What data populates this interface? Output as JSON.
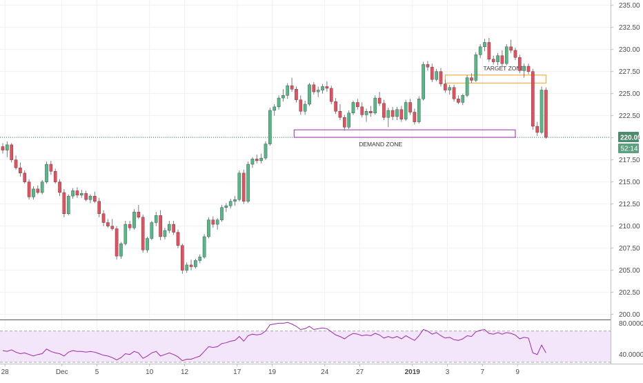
{
  "chart_data": {
    "type": "candlestick",
    "colors": {
      "up": "#53b987",
      "down": "#eb4d5c",
      "wick": "#6b6b6b",
      "grid": "#eef0f3",
      "price_line": "#2e7d5b",
      "price_badge": "#4e8a6d",
      "countdown_badge": "#5e9f7f",
      "target_zone": "#f0a020",
      "demand_zone": "#9c27b0",
      "rsi_line": "#9c27b0",
      "rsi_band": "#f3e6fb"
    },
    "price_axis": {
      "min": 199.5,
      "max": 235.6,
      "ticks": [
        "235.00",
        "232.50",
        "230.00",
        "227.50",
        "225.00",
        "222.50",
        "220.00",
        "217.50",
        "215.00",
        "212.50",
        "210.00",
        "207.50",
        "205.00",
        "202.50",
        "200.00"
      ]
    },
    "current_price": "220.05",
    "countdown": "52:14",
    "x_axis": {
      "labels": [
        {
          "text": "28",
          "bar": 0.5
        },
        {
          "text": "Dec",
          "bar": 13.5
        },
        {
          "text": "5",
          "bar": 21.5
        },
        {
          "text": "10",
          "bar": 33.5
        },
        {
          "text": "12",
          "bar": 41.5
        },
        {
          "text": "17",
          "bar": 53.5
        },
        {
          "text": "19",
          "bar": 61.5
        },
        {
          "text": "24",
          "bar": 73.5
        },
        {
          "text": "27",
          "bar": 81.5
        },
        {
          "text": "2019",
          "bar": 93.5
        },
        {
          "text": "3",
          "bar": 101.5
        },
        {
          "text": "7",
          "bar": 109.5
        },
        {
          "text": "9",
          "bar": 117.5
        }
      ]
    },
    "zones": [
      {
        "label": "TARGET ZONE",
        "top": 227.1,
        "bottom": 226.2,
        "from_bar": 101.0,
        "to_bar": 124.0
      },
      {
        "label": "DEMAND ZONE",
        "top": 220.9,
        "bottom": 220.05,
        "from_bar": 66.5,
        "to_bar": 117.0
      }
    ],
    "candles": [
      [
        219.0,
        219.4,
        218.2,
        218.6
      ],
      [
        218.6,
        219.6,
        217.8,
        219.2
      ],
      [
        219.2,
        219.4,
        217.2,
        217.5
      ],
      [
        217.5,
        218.0,
        216.4,
        216.6
      ],
      [
        216.6,
        217.2,
        215.6,
        216.0
      ],
      [
        216.0,
        216.3,
        214.8,
        215.0
      ],
      [
        215.0,
        215.3,
        213.0,
        213.3
      ],
      [
        213.3,
        214.5,
        213.0,
        214.2
      ],
      [
        214.2,
        214.6,
        213.6,
        213.8
      ],
      [
        213.8,
        215.2,
        213.6,
        215.0
      ],
      [
        215.0,
        217.3,
        214.8,
        217.0
      ],
      [
        217.0,
        217.4,
        215.8,
        216.2
      ],
      [
        216.2,
        216.5,
        214.8,
        215.0
      ],
      [
        215.0,
        215.3,
        213.4,
        213.8
      ],
      [
        213.8,
        214.2,
        211.0,
        211.4
      ],
      [
        211.4,
        213.6,
        211.2,
        213.4
      ],
      [
        213.4,
        214.3,
        213.1,
        214.0
      ],
      [
        214.0,
        214.4,
        213.2,
        213.5
      ],
      [
        213.5,
        214.1,
        213.2,
        213.7
      ],
      [
        213.7,
        214.0,
        212.8,
        213.0
      ],
      [
        213.0,
        213.6,
        212.6,
        213.4
      ],
      [
        213.4,
        213.9,
        212.6,
        212.8
      ],
      [
        212.8,
        213.2,
        211.0,
        211.4
      ],
      [
        211.4,
        211.8,
        210.0,
        210.4
      ],
      [
        210.4,
        210.8,
        209.8,
        210.0
      ],
      [
        210.0,
        210.8,
        209.5,
        209.7
      ],
      [
        209.7,
        210.0,
        206.2,
        206.6
      ],
      [
        206.6,
        208.2,
        206.3,
        208.0
      ],
      [
        208.0,
        210.6,
        207.8,
        210.2
      ],
      [
        210.2,
        210.6,
        209.5,
        209.8
      ],
      [
        209.8,
        211.9,
        209.6,
        211.6
      ],
      [
        211.6,
        212.4,
        210.8,
        211.0
      ],
      [
        211.0,
        211.3,
        207.0,
        207.3
      ],
      [
        207.3,
        208.8,
        207.0,
        208.6
      ],
      [
        208.6,
        210.6,
        208.4,
        210.4
      ],
      [
        210.4,
        211.6,
        210.0,
        211.2
      ],
      [
        211.2,
        211.8,
        208.4,
        208.8
      ],
      [
        208.8,
        209.8,
        208.5,
        209.5
      ],
      [
        209.5,
        210.6,
        209.2,
        210.2
      ],
      [
        210.2,
        210.6,
        209.0,
        209.3
      ],
      [
        209.3,
        209.6,
        207.5,
        207.8
      ],
      [
        207.8,
        208.0,
        204.6,
        205.0
      ],
      [
        205.0,
        205.9,
        204.7,
        205.6
      ],
      [
        205.6,
        206.2,
        205.0,
        205.4
      ],
      [
        205.4,
        206.3,
        205.2,
        206.1
      ],
      [
        206.1,
        206.8,
        205.8,
        206.5
      ],
      [
        206.5,
        209.1,
        206.3,
        208.8
      ],
      [
        208.8,
        211.0,
        208.6,
        210.7
      ],
      [
        210.7,
        211.1,
        209.8,
        210.2
      ],
      [
        210.2,
        210.9,
        209.6,
        210.7
      ],
      [
        210.7,
        212.4,
        210.5,
        212.1
      ],
      [
        212.1,
        212.6,
        211.6,
        212.3
      ],
      [
        212.3,
        213.1,
        212.0,
        212.8
      ],
      [
        212.8,
        213.4,
        212.3,
        213.0
      ],
      [
        213.0,
        216.3,
        212.8,
        216.0
      ],
      [
        216.0,
        216.4,
        212.5,
        212.8
      ],
      [
        212.8,
        217.3,
        212.6,
        217.0
      ],
      [
        217.0,
        217.8,
        216.6,
        217.6
      ],
      [
        217.6,
        218.1,
        217.1,
        217.4
      ],
      [
        217.4,
        218.2,
        217.1,
        217.7
      ],
      [
        217.7,
        219.6,
        217.5,
        219.3
      ],
      [
        219.3,
        223.4,
        219.1,
        223.1
      ],
      [
        223.1,
        223.8,
        222.5,
        223.5
      ],
      [
        223.5,
        224.8,
        223.2,
        224.5
      ],
      [
        224.5,
        225.5,
        224.1,
        224.8
      ],
      [
        224.8,
        226.2,
        224.4,
        225.9
      ],
      [
        225.9,
        226.8,
        225.2,
        225.5
      ],
      [
        225.5,
        225.8,
        224.0,
        224.3
      ],
      [
        224.3,
        224.8,
        222.6,
        223.0
      ],
      [
        223.0,
        224.2,
        222.6,
        223.8
      ],
      [
        223.8,
        226.2,
        223.6,
        226.0
      ],
      [
        226.0,
        226.3,
        224.9,
        225.2
      ],
      [
        225.2,
        225.8,
        224.6,
        225.4
      ],
      [
        225.4,
        226.1,
        225.0,
        225.8
      ],
      [
        225.8,
        226.4,
        225.2,
        225.6
      ],
      [
        225.6,
        225.9,
        223.8,
        224.1
      ],
      [
        224.1,
        224.5,
        222.7,
        223.0
      ],
      [
        223.0,
        223.8,
        222.0,
        222.3
      ],
      [
        222.3,
        222.6,
        220.8,
        221.2
      ],
      [
        221.2,
        223.1,
        221.0,
        222.8
      ],
      [
        222.8,
        224.2,
        222.6,
        224.0
      ],
      [
        224.0,
        224.4,
        223.2,
        223.5
      ],
      [
        223.5,
        224.0,
        222.3,
        222.6
      ],
      [
        222.6,
        223.3,
        221.8,
        223.0
      ],
      [
        223.0,
        223.6,
        222.4,
        222.8
      ],
      [
        222.8,
        224.8,
        222.6,
        224.5
      ],
      [
        224.5,
        225.2,
        223.6,
        223.9
      ],
      [
        223.9,
        224.3,
        222.0,
        222.3
      ],
      [
        222.3,
        223.4,
        221.2,
        223.1
      ],
      [
        223.1,
        223.5,
        222.0,
        222.4
      ],
      [
        222.4,
        223.5,
        222.0,
        223.2
      ],
      [
        223.2,
        223.6,
        221.8,
        222.1
      ],
      [
        222.1,
        224.3,
        221.9,
        224.0
      ],
      [
        224.0,
        224.4,
        222.6,
        222.9
      ],
      [
        222.9,
        223.3,
        221.5,
        221.8
      ],
      [
        221.8,
        224.7,
        221.6,
        224.4
      ],
      [
        224.4,
        228.6,
        224.2,
        228.3
      ],
      [
        228.3,
        228.7,
        227.6,
        228.0
      ],
      [
        228.0,
        228.4,
        226.3,
        226.6
      ],
      [
        226.6,
        227.8,
        226.4,
        227.5
      ],
      [
        227.5,
        227.9,
        225.8,
        226.1
      ],
      [
        226.1,
        226.6,
        225.1,
        225.4
      ],
      [
        225.4,
        226.0,
        224.9,
        225.7
      ],
      [
        225.7,
        226.0,
        224.1,
        224.4
      ],
      [
        224.4,
        224.8,
        223.8,
        224.0
      ],
      [
        224.0,
        225.0,
        223.7,
        224.8
      ],
      [
        224.8,
        227.1,
        224.6,
        226.8
      ],
      [
        226.8,
        227.3,
        226.2,
        226.5
      ],
      [
        226.5,
        229.7,
        226.3,
        229.4
      ],
      [
        229.4,
        230.6,
        229.0,
        230.3
      ],
      [
        230.3,
        231.2,
        229.8,
        230.8
      ],
      [
        230.8,
        231.3,
        228.6,
        228.9
      ],
      [
        228.9,
        229.3,
        228.3,
        228.6
      ],
      [
        228.6,
        229.6,
        228.2,
        229.3
      ],
      [
        229.3,
        229.9,
        228.0,
        228.4
      ],
      [
        228.4,
        230.6,
        228.2,
        230.3
      ],
      [
        230.3,
        231.1,
        229.6,
        229.9
      ],
      [
        229.9,
        230.2,
        228.8,
        229.1
      ],
      [
        229.1,
        229.4,
        227.3,
        227.6
      ],
      [
        227.6,
        228.4,
        226.8,
        228.1
      ],
      [
        228.1,
        228.4,
        227.2,
        227.5
      ],
      [
        227.5,
        227.8,
        220.9,
        221.3
      ],
      [
        221.3,
        221.8,
        220.2,
        220.6
      ],
      [
        220.6,
        225.8,
        220.4,
        225.4
      ],
      [
        225.4,
        225.7,
        219.9,
        220.05
      ]
    ],
    "rsi": {
      "min": 30,
      "max": 83,
      "bands": [
        70,
        30
      ],
      "ticks": [
        "80.0000",
        "40.0000"
      ],
      "values": [
        45,
        44,
        46,
        43,
        41,
        42,
        40,
        38,
        40,
        41,
        47,
        44,
        42,
        41,
        38,
        43,
        45,
        44,
        44,
        43,
        44,
        43,
        41,
        39,
        38,
        36,
        33,
        36,
        41,
        40,
        44,
        42,
        35,
        38,
        42,
        44,
        38,
        40,
        42,
        40,
        37,
        32,
        34,
        34,
        36,
        38,
        44,
        50,
        49,
        50,
        54,
        55,
        57,
        58,
        63,
        57,
        64,
        66,
        65,
        66,
        70,
        78,
        79,
        80,
        80,
        81,
        79,
        76,
        72,
        73,
        76,
        72,
        73,
        74,
        73,
        69,
        65,
        63,
        60,
        64,
        67,
        66,
        64,
        65,
        64,
        67,
        65,
        61,
        63,
        61,
        63,
        60,
        64,
        61,
        58,
        64,
        72,
        70,
        66,
        68,
        64,
        61,
        62,
        59,
        58,
        60,
        64,
        63,
        69,
        71,
        72,
        67,
        66,
        68,
        66,
        68,
        67,
        65,
        60,
        62,
        61,
        42,
        40,
        52,
        42
      ]
    }
  }
}
